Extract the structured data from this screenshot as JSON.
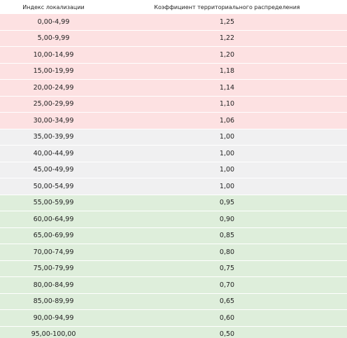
{
  "table": {
    "headers": {
      "index": "Индекс локализации",
      "coefficient": "Коэффициент территориального распределения"
    },
    "colors": {
      "red": "#fde1e2",
      "gray": "#f0f0f1",
      "green": "#deeedb"
    },
    "rows": [
      {
        "range": "0,00-4,99",
        "coef": "1,25",
        "group": "red"
      },
      {
        "range": "5,00-9,99",
        "coef": "1,22",
        "group": "red"
      },
      {
        "range": "10,00-14,99",
        "coef": "1,20",
        "group": "red"
      },
      {
        "range": "15,00-19,99",
        "coef": "1,18",
        "group": "red"
      },
      {
        "range": "20,00-24,99",
        "coef": "1,14",
        "group": "red"
      },
      {
        "range": "25,00-29,99",
        "coef": "1,10",
        "group": "red"
      },
      {
        "range": "30,00-34,99",
        "coef": "1,06",
        "group": "red"
      },
      {
        "range": "35,00-39,99",
        "coef": "1,00",
        "group": "gray"
      },
      {
        "range": "40,00-44,99",
        "coef": "1,00",
        "group": "gray"
      },
      {
        "range": "45,00-49,99",
        "coef": "1,00",
        "group": "gray"
      },
      {
        "range": "50,00-54,99",
        "coef": "1,00",
        "group": "gray"
      },
      {
        "range": "55,00-59,99",
        "coef": "0,95",
        "group": "green"
      },
      {
        "range": "60,00-64,99",
        "coef": "0,90",
        "group": "green"
      },
      {
        "range": "65,00-69,99",
        "coef": "0,85",
        "group": "green"
      },
      {
        "range": "70,00-74,99",
        "coef": "0,80",
        "group": "green"
      },
      {
        "range": "75,00-79,99",
        "coef": "0,75",
        "group": "green"
      },
      {
        "range": "80,00-84,99",
        "coef": "0,70",
        "group": "green"
      },
      {
        "range": "85,00-89,99",
        "coef": "0,65",
        "group": "green"
      },
      {
        "range": "90,00-94,99",
        "coef": "0,60",
        "group": "green"
      },
      {
        "range": "95,00-100,00",
        "coef": "0,50",
        "group": "green"
      }
    ]
  }
}
